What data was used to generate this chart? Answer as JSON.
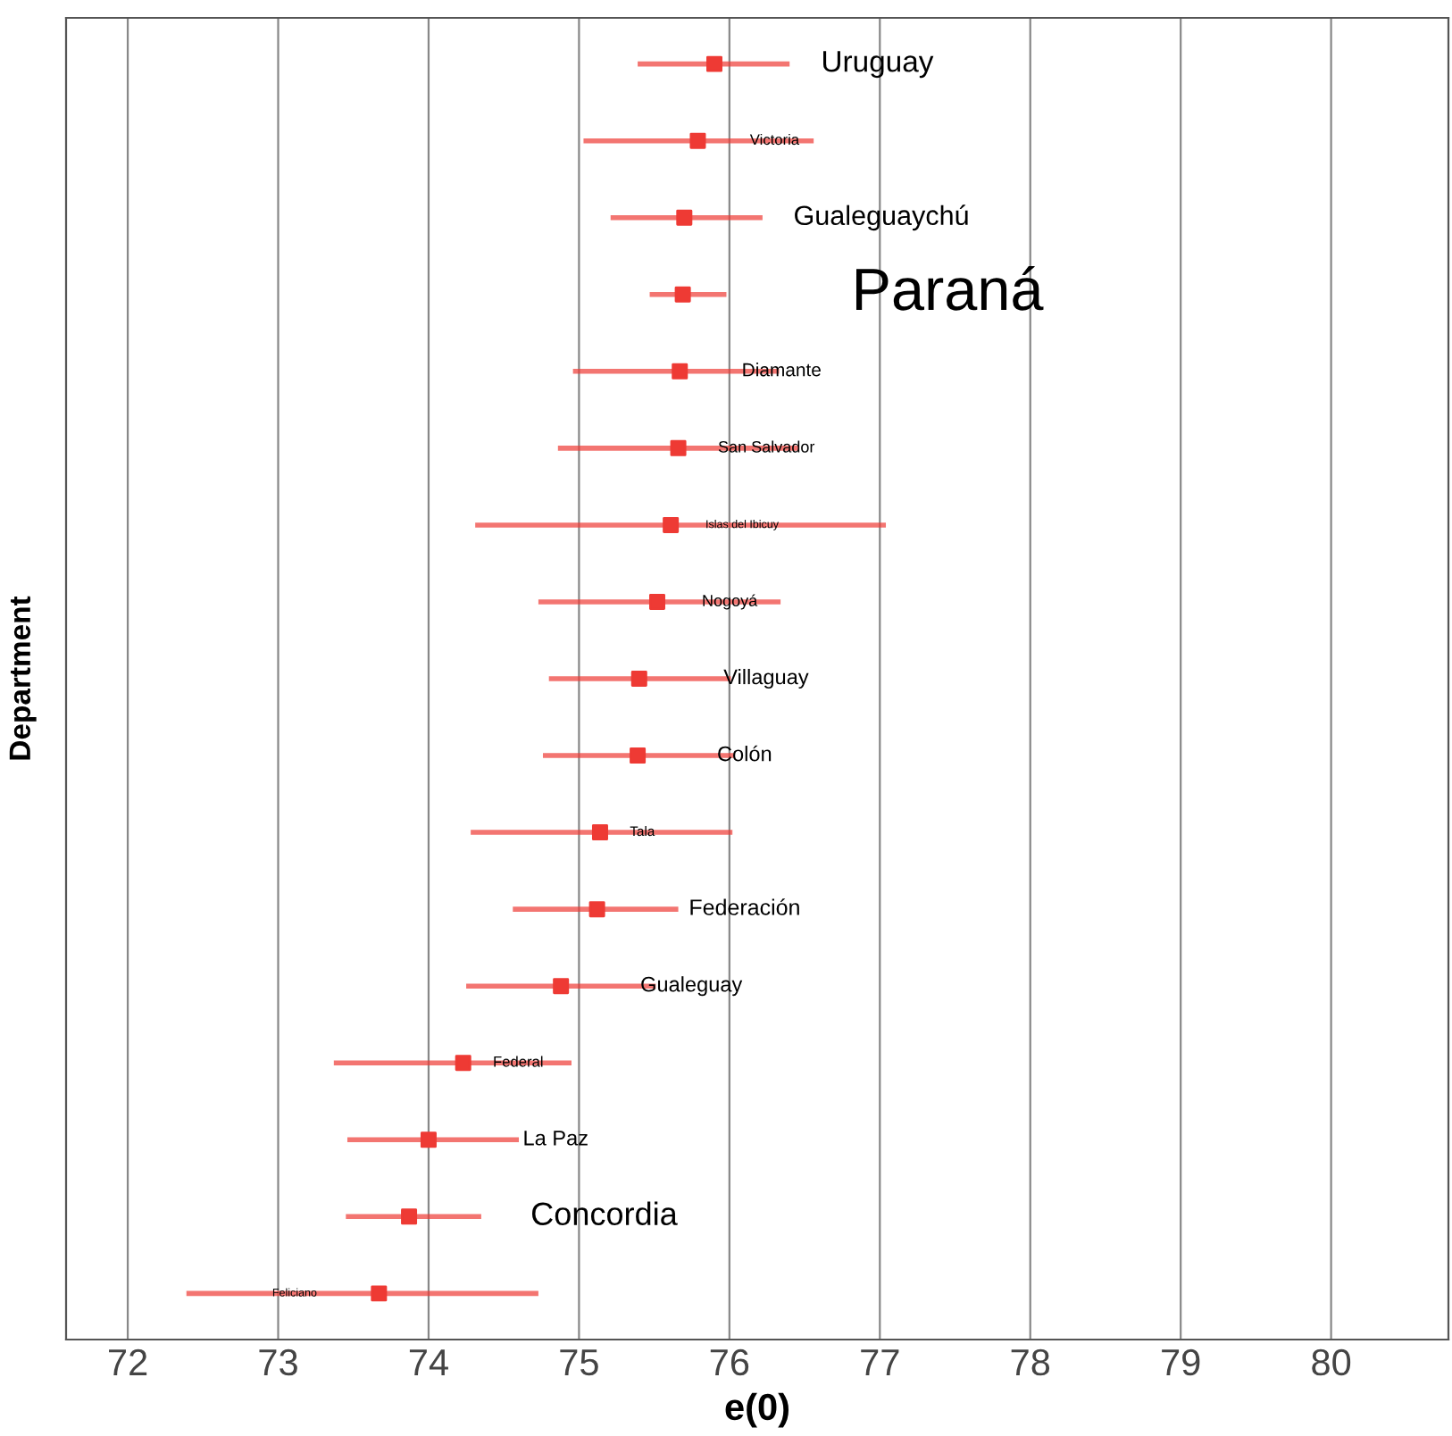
{
  "chart_data": {
    "type": "scatter",
    "orientation": "horizontal",
    "xlabel": "e(0)",
    "ylabel": "Department",
    "tick_labels": "x",
    "grid": "x",
    "marker": "square",
    "categories": [
      "Uruguay",
      "Victoria",
      "Gualeguaychú",
      "Paraná",
      "Diamante",
      "San Salvador",
      "Islas del Ibicuy",
      "Nogoyá",
      "Villaguay",
      "Colón",
      "Tala",
      "Federación",
      "Gualeguay",
      "Federal",
      "La Paz",
      "Concordia",
      "Feliciano"
    ],
    "series": [
      {
        "color": "#ee3a34",
        "values": [
          75.9,
          75.79,
          75.7,
          75.69,
          75.67,
          75.66,
          75.61,
          75.52,
          75.4,
          75.39,
          75.14,
          75.12,
          74.88,
          74.23,
          74.0,
          73.87,
          73.67
        ],
        "errors": [
          [
            75.39,
            76.4
          ],
          [
            75.03,
            76.56
          ],
          [
            75.21,
            76.22
          ],
          [
            75.47,
            75.98
          ],
          [
            74.96,
            76.33
          ],
          [
            74.86,
            76.46
          ],
          [
            74.31,
            77.04
          ],
          [
            74.73,
            76.34
          ],
          [
            74.8,
            76.01
          ],
          [
            74.76,
            76.03
          ],
          [
            74.28,
            76.02
          ],
          [
            74.56,
            75.66
          ],
          [
            74.25,
            75.51
          ],
          [
            73.37,
            74.95
          ],
          [
            73.46,
            74.6
          ],
          [
            73.45,
            74.35
          ],
          [
            72.39,
            74.73
          ]
        ]
      }
    ],
    "xlim": [
      71.59,
      80.78
    ],
    "xticks": [
      72,
      73,
      74,
      75,
      76,
      77,
      78,
      79,
      80
    ]
  }
}
